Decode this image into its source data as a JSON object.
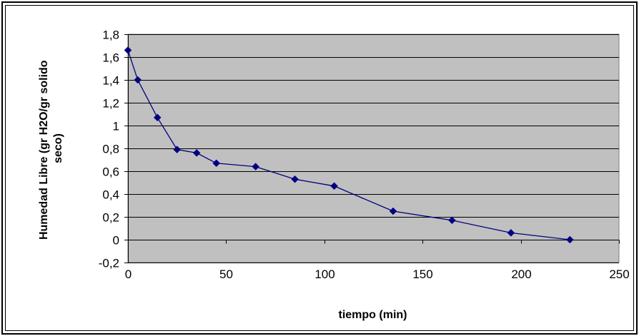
{
  "chart_data": {
    "type": "line",
    "xlabel": "tiempo (min)",
    "ylabel_lines": [
      "Humedad Libre (gr H2O/gr solido",
      "seco)"
    ],
    "xlim": [
      0,
      250
    ],
    "ylim": [
      -0.2,
      1.8
    ],
    "x_ticks": [
      {
        "value": 0,
        "label": "0"
      },
      {
        "value": 50,
        "label": "50"
      },
      {
        "value": 100,
        "label": "100"
      },
      {
        "value": 150,
        "label": "150"
      },
      {
        "value": 200,
        "label": "200"
      },
      {
        "value": 250,
        "label": "250"
      }
    ],
    "y_ticks": [
      {
        "value": 1.8,
        "label": "1,8"
      },
      {
        "value": 1.6,
        "label": "1,6"
      },
      {
        "value": 1.4,
        "label": "1,4"
      },
      {
        "value": 1.2,
        "label": "1,2"
      },
      {
        "value": 1.0,
        "label": "1"
      },
      {
        "value": 0.8,
        "label": "0,8"
      },
      {
        "value": 0.6,
        "label": "0,6"
      },
      {
        "value": 0.4,
        "label": "0,4"
      },
      {
        "value": 0.2,
        "label": "0,2"
      },
      {
        "value": 0.0,
        "label": "0"
      },
      {
        "value": -0.2,
        "label": "-0,2"
      }
    ],
    "grid": true,
    "legend": "none",
    "plot_background": "#c0c0c0",
    "series": [
      {
        "color": "#000080",
        "marker": "diamond",
        "points": [
          {
            "x": 0,
            "y": 1.66
          },
          {
            "x": 5,
            "y": 1.4
          },
          {
            "x": 15,
            "y": 1.07
          },
          {
            "x": 25,
            "y": 0.79
          },
          {
            "x": 35,
            "y": 0.76
          },
          {
            "x": 45,
            "y": 0.67
          },
          {
            "x": 65,
            "y": 0.64
          },
          {
            "x": 85,
            "y": 0.53
          },
          {
            "x": 105,
            "y": 0.47
          },
          {
            "x": 135,
            "y": 0.25
          },
          {
            "x": 165,
            "y": 0.17
          },
          {
            "x": 195,
            "y": 0.06
          },
          {
            "x": 225,
            "y": 0.0
          }
        ]
      }
    ]
  }
}
